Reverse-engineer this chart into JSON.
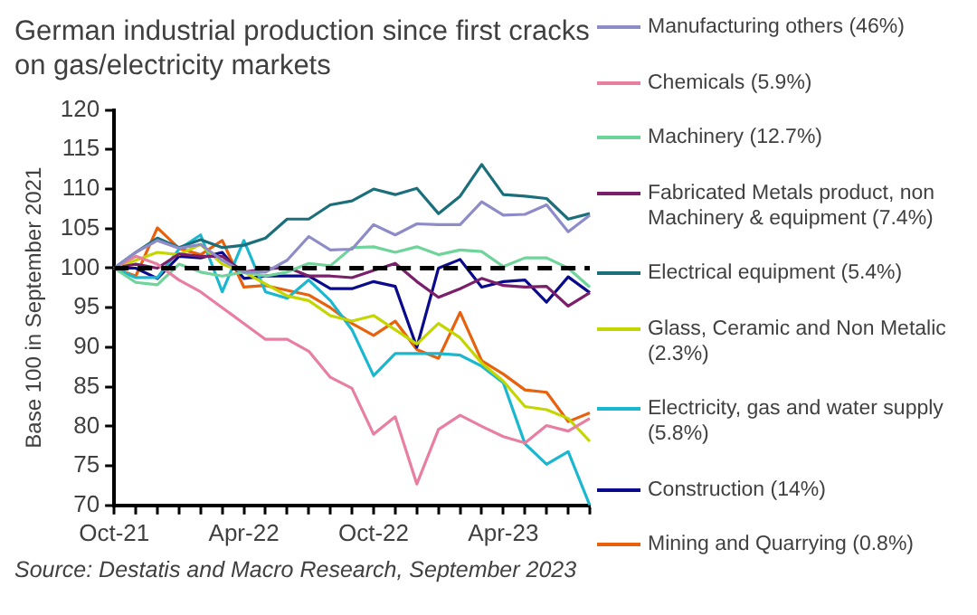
{
  "chart_data": {
    "type": "line",
    "title": "German industrial production since first cracks on gas/electricity markets",
    "ylabel": "Base 100 in September 2021",
    "annotations": [
      "Source: Destatis and Macro Research, September 2023"
    ],
    "categories": [
      "Oct-21",
      null,
      null,
      null,
      null,
      null,
      "Apr-22",
      null,
      null,
      null,
      null,
      null,
      "Oct-22",
      null,
      null,
      null,
      null,
      null,
      "Apr-23",
      null,
      null,
      null,
      null
    ],
    "ylim": [
      70,
      120
    ],
    "yticks": [
      70,
      75,
      80,
      85,
      90,
      95,
      100,
      105,
      110,
      115,
      120
    ],
    "grid": false,
    "legend": "right",
    "marker": "none",
    "ref_lines": [
      {
        "axis": "y",
        "value": 100,
        "color": "#000000",
        "line_style": "dashed"
      }
    ],
    "series": [
      {
        "name": "Manufacturing others (46%)",
        "color": "#8e8cc8",
        "values": [
          100,
          102,
          103.5,
          102.5,
          103,
          101,
          99.5,
          99.5,
          101,
          104,
          102.3,
          102.4,
          105.5,
          104.2,
          105.6,
          105.5,
          105.5,
          108.4,
          106.7,
          106.8,
          108,
          104.6,
          106.7
        ]
      },
      {
        "name": "Chemicals (5.9%)",
        "color": "#e87fa0",
        "values": [
          100,
          101.5,
          100.5,
          98.5,
          97,
          95,
          93,
          91,
          91,
          89.5,
          86.2,
          84.8,
          79,
          81.2,
          72.7,
          79.6,
          81.4,
          80,
          78.7,
          77.9,
          80.1,
          79.4,
          81
        ]
      },
      {
        "name": "Machinery (12.7%)",
        "color": "#6fd49a",
        "values": [
          100,
          98.2,
          97.9,
          100.5,
          99.5,
          99,
          99.5,
          99,
          99.5,
          100.6,
          100.3,
          102.6,
          102.7,
          102,
          102.7,
          101.7,
          102.3,
          102.1,
          100.2,
          101.3,
          101.3,
          100,
          97.6
        ]
      },
      {
        "name": "Fabricated Metals product, non Machinery & equipment (7.4%)",
        "color": "#7b1f6a",
        "values": [
          100,
          100.5,
          100,
          101.8,
          101.5,
          101.5,
          99.5,
          99.9,
          100.1,
          99,
          99,
          98.8,
          99.7,
          100.6,
          98.3,
          96.3,
          97.4,
          98.7,
          97.8,
          97.6,
          97.7,
          95.2,
          96.9
        ]
      },
      {
        "name": "Electrical equipment (5.4%)",
        "color": "#1a6f7a",
        "values": [
          100,
          102,
          103.8,
          102.6,
          103.6,
          102.6,
          102.9,
          103.8,
          106.2,
          106.2,
          108,
          108.5,
          110,
          109.3,
          110.1,
          106.9,
          109.1,
          113.1,
          109.3,
          109.1,
          108.8,
          106.2,
          106.9
        ]
      },
      {
        "name": "Glass, Ceramic and Non Metalic (2.3%)",
        "color": "#c4d600",
        "values": [
          100,
          101,
          102,
          101.7,
          103,
          100.5,
          99.5,
          98,
          96.5,
          95.9,
          94,
          93.3,
          94,
          92.2,
          90.4,
          93,
          91.2,
          88,
          85.7,
          82.5,
          82.1,
          81,
          78.1
        ]
      },
      {
        "name": "Electricity, gas and water supply (5.8%)",
        "color": "#1ab8d0",
        "values": [
          100,
          98.8,
          98.8,
          102.4,
          104.2,
          97,
          103.5,
          97,
          96.2,
          98.5,
          95.9,
          92.2,
          86.4,
          89.2,
          89.2,
          89.2,
          89,
          87.6,
          85.5,
          77.8,
          75.2,
          76.8,
          70
        ]
      },
      {
        "name": "Construction (14%)",
        "color": "#0a0a8c",
        "values": [
          100,
          100,
          98.7,
          101.5,
          101.3,
          102,
          98.7,
          99,
          99,
          99,
          97.4,
          97.4,
          98.3,
          97.7,
          90,
          100,
          101.1,
          97.6,
          98.3,
          98.5,
          95.7,
          98.9,
          96.9
        ]
      },
      {
        "name": "Mining and Quarrying (0.8%)",
        "color": "#e8620e",
        "values": [
          100,
          99,
          105.1,
          102.5,
          101.7,
          103.5,
          97.6,
          97.8,
          97.2,
          96.6,
          95,
          93,
          91.5,
          93.3,
          89.7,
          88.6,
          94.4,
          88.3,
          86.6,
          84.6,
          84.3,
          80.6,
          81.7
        ]
      }
    ]
  }
}
